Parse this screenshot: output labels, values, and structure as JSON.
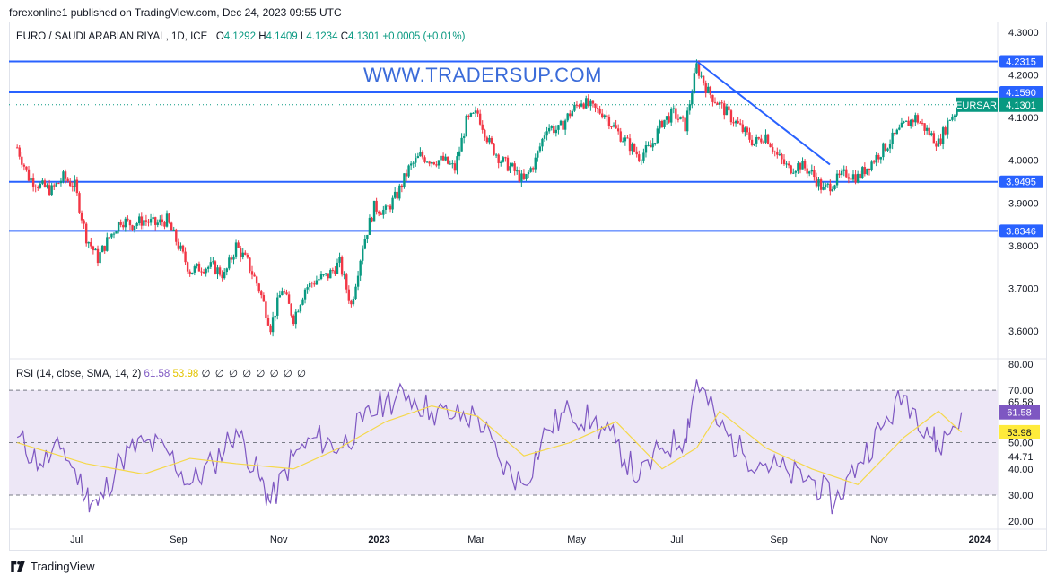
{
  "header": {
    "publisher_line": "forexonline1 published on TradingView.com, Dec 24, 2023 09:55 UTC"
  },
  "watermark": "WWW.TRADERSUP.COM",
  "legend": {
    "symbol": "EURO / SAUDI ARABIAN RIYAL, 1D, ICE",
    "o_label": "O",
    "o": "4.1292",
    "h_label": "H",
    "h": "4.1409",
    "l_label": "L",
    "l": "4.1234",
    "c_label": "C",
    "c": "4.1301",
    "change": "+0.0005 (+0.01%)"
  },
  "rsi_legend": {
    "label": "RSI (14, close, SMA, 14, 2)",
    "rsi": "61.58",
    "sma": "53.98",
    "empty": "∅ ∅ ∅ ∅ ∅ ∅ ∅ ∅"
  },
  "footer": {
    "brand": "TradingView"
  },
  "colors": {
    "up": "#089981",
    "down": "#f23645",
    "hline": "#2962ff",
    "rsi": "#7e57c2",
    "rsi_ma": "#f5d84a",
    "rsi_band": "#ede7f6"
  },
  "chart_data": [
    {
      "type": "candlestick",
      "symbol": "EURSAR",
      "price_axis_ticks": [
        "4.3000",
        "4.2000",
        "4.1000",
        "4.0000",
        "3.9000",
        "3.8000",
        "3.7000",
        "3.6000"
      ],
      "time_axis_ticks": [
        "Jul",
        "Sep",
        "Nov",
        "2023",
        "Mar",
        "May",
        "Jul",
        "Sep",
        "Nov",
        "2024"
      ],
      "ylim": [
        3.535,
        4.325
      ],
      "horizontal_levels": [
        {
          "label": "4.2315",
          "value": 4.2315
        },
        {
          "label": "4.1590",
          "value": 4.159
        },
        {
          "label": "3.9495",
          "value": 3.9495
        },
        {
          "label": "3.8346",
          "value": 3.8346
        }
      ],
      "current_price": {
        "symbol_tag": "EURSAR",
        "value": "4.1301",
        "numeric": 4.1301
      },
      "trendline": {
        "from": {
          "date": "2023-07-13",
          "price": 4.232
        },
        "to": {
          "date": "2023-10-02",
          "price": 3.99
        }
      },
      "close_series_approx": [
        [
          "2022-05-26",
          4.03
        ],
        [
          "2022-06-02",
          3.96
        ],
        [
          "2022-06-09",
          3.94
        ],
        [
          "2022-06-16",
          3.93
        ],
        [
          "2022-06-23",
          3.96
        ],
        [
          "2022-06-30",
          3.94
        ],
        [
          "2022-07-07",
          3.82
        ],
        [
          "2022-07-14",
          3.77
        ],
        [
          "2022-07-21",
          3.82
        ],
        [
          "2022-07-28",
          3.86
        ],
        [
          "2022-08-04",
          3.85
        ],
        [
          "2022-08-11",
          3.86
        ],
        [
          "2022-08-18",
          3.85
        ],
        [
          "2022-08-25",
          3.86
        ],
        [
          "2022-09-01",
          3.8
        ],
        [
          "2022-09-08",
          3.74
        ],
        [
          "2022-09-15",
          3.75
        ],
        [
          "2022-09-22",
          3.75
        ],
        [
          "2022-09-29",
          3.73
        ],
        [
          "2022-10-06",
          3.8
        ],
        [
          "2022-10-13",
          3.76
        ],
        [
          "2022-10-20",
          3.7
        ],
        [
          "2022-10-27",
          3.61
        ],
        [
          "2022-11-03",
          3.7
        ],
        [
          "2022-11-10",
          3.63
        ],
        [
          "2022-11-17",
          3.7
        ],
        [
          "2022-11-24",
          3.72
        ],
        [
          "2022-12-01",
          3.73
        ],
        [
          "2022-12-08",
          3.76
        ],
        [
          "2022-12-15",
          3.66
        ],
        [
          "2022-12-22",
          3.8
        ],
        [
          "2022-12-29",
          3.89
        ],
        [
          "2023-01-05",
          3.88
        ],
        [
          "2023-01-12",
          3.92
        ],
        [
          "2023-01-19",
          3.98
        ],
        [
          "2023-01-26",
          4.01
        ],
        [
          "2023-02-02",
          4.0
        ],
        [
          "2023-02-09",
          4.0
        ],
        [
          "2023-02-16",
          3.98
        ],
        [
          "2023-02-23",
          4.09
        ],
        [
          "2023-03-02",
          4.11
        ],
        [
          "2023-03-09",
          4.04
        ],
        [
          "2023-03-16",
          4.0
        ],
        [
          "2023-03-23",
          3.98
        ],
        [
          "2023-03-30",
          3.95
        ],
        [
          "2023-04-06",
          4.0
        ],
        [
          "2023-04-13",
          4.08
        ],
        [
          "2023-04-20",
          4.07
        ],
        [
          "2023-04-27",
          4.11
        ],
        [
          "2023-05-04",
          4.14
        ],
        [
          "2023-05-11",
          4.12
        ],
        [
          "2023-05-18",
          4.11
        ],
        [
          "2023-05-25",
          4.07
        ],
        [
          "2023-06-01",
          4.04
        ],
        [
          "2023-06-08",
          4.01
        ],
        [
          "2023-06-15",
          4.03
        ],
        [
          "2023-06-22",
          4.09
        ],
        [
          "2023-06-29",
          4.11
        ],
        [
          "2023-07-06",
          4.08
        ],
        [
          "2023-07-13",
          4.22
        ],
        [
          "2023-07-20",
          4.16
        ],
        [
          "2023-07-27",
          4.13
        ],
        [
          "2023-08-03",
          4.1
        ],
        [
          "2023-08-10",
          4.07
        ],
        [
          "2023-08-17",
          4.04
        ],
        [
          "2023-08-24",
          4.06
        ],
        [
          "2023-08-31",
          4.01
        ],
        [
          "2023-09-07",
          3.98
        ],
        [
          "2023-09-14",
          3.99
        ],
        [
          "2023-09-21",
          3.97
        ],
        [
          "2023-09-28",
          3.93
        ],
        [
          "2023-10-05",
          3.95
        ],
        [
          "2023-10-12",
          3.97
        ],
        [
          "2023-10-19",
          3.96
        ],
        [
          "2023-10-26",
          3.99
        ],
        [
          "2023-11-02",
          4.02
        ],
        [
          "2023-11-09",
          4.05
        ],
        [
          "2023-11-16",
          4.08
        ],
        [
          "2023-11-23",
          4.1
        ],
        [
          "2023-11-30",
          4.07
        ],
        [
          "2023-12-07",
          4.04
        ],
        [
          "2023-12-14",
          4.1
        ],
        [
          "2023-12-21",
          4.13
        ]
      ]
    },
    {
      "type": "line",
      "name": "RSI (14, close, SMA, 14, 2)",
      "rsi_axis_ticks": [
        "80.00",
        "70.00",
        "65.58",
        "50.00",
        "44.71",
        "40.00",
        "30.00",
        "20.00"
      ],
      "ylim": [
        17,
        82
      ],
      "bands": {
        "upper": 70,
        "middle": 50,
        "lower": 30
      },
      "last_rsi": "61.58",
      "last_sma": "53.98",
      "rsi_series_approx": [
        [
          "2022-05-26",
          52
        ],
        [
          "2022-06-09",
          42
        ],
        [
          "2022-06-23",
          48
        ],
        [
          "2022-07-07",
          30
        ],
        [
          "2022-07-14",
          26
        ],
        [
          "2022-07-28",
          44
        ],
        [
          "2022-08-11",
          50
        ],
        [
          "2022-08-25",
          47
        ],
        [
          "2022-09-08",
          34
        ],
        [
          "2022-09-22",
          42
        ],
        [
          "2022-10-06",
          55
        ],
        [
          "2022-10-20",
          37
        ],
        [
          "2022-10-27",
          27
        ],
        [
          "2022-11-10",
          45
        ],
        [
          "2022-11-24",
          52
        ],
        [
          "2022-12-08",
          48
        ],
        [
          "2022-12-22",
          58
        ],
        [
          "2023-01-05",
          66
        ],
        [
          "2023-01-19",
          68
        ],
        [
          "2023-02-02",
          62
        ],
        [
          "2023-02-16",
          60
        ],
        [
          "2023-03-02",
          60
        ],
        [
          "2023-03-16",
          42
        ],
        [
          "2023-03-30",
          34
        ],
        [
          "2023-04-13",
          55
        ],
        [
          "2023-04-27",
          62
        ],
        [
          "2023-05-11",
          58
        ],
        [
          "2023-05-25",
          50
        ],
        [
          "2023-06-08",
          36
        ],
        [
          "2023-06-22",
          48
        ],
        [
          "2023-07-06",
          52
        ],
        [
          "2023-07-13",
          74
        ],
        [
          "2023-07-27",
          56
        ],
        [
          "2023-08-10",
          46
        ],
        [
          "2023-08-24",
          42
        ],
        [
          "2023-09-07",
          38
        ],
        [
          "2023-09-21",
          36
        ],
        [
          "2023-10-05",
          27
        ],
        [
          "2023-10-19",
          42
        ],
        [
          "2023-11-02",
          55
        ],
        [
          "2023-11-16",
          68
        ],
        [
          "2023-11-30",
          56
        ],
        [
          "2023-12-07",
          48
        ],
        [
          "2023-12-21",
          61.58
        ]
      ],
      "sma_series_approx": [
        [
          "2022-05-26",
          50
        ],
        [
          "2022-07-07",
          42
        ],
        [
          "2022-08-11",
          38
        ],
        [
          "2022-09-08",
          44
        ],
        [
          "2022-10-06",
          42
        ],
        [
          "2022-11-10",
          40
        ],
        [
          "2022-12-08",
          48
        ],
        [
          "2023-01-05",
          58
        ],
        [
          "2023-02-02",
          64
        ],
        [
          "2023-03-02",
          60
        ],
        [
          "2023-03-30",
          45
        ],
        [
          "2023-04-27",
          50
        ],
        [
          "2023-05-25",
          58
        ],
        [
          "2023-06-22",
          40
        ],
        [
          "2023-07-13",
          48
        ],
        [
          "2023-07-27",
          62
        ],
        [
          "2023-08-24",
          48
        ],
        [
          "2023-09-21",
          40
        ],
        [
          "2023-10-19",
          34
        ],
        [
          "2023-11-16",
          52
        ],
        [
          "2023-12-07",
          62
        ],
        [
          "2023-12-21",
          53.98
        ]
      ]
    }
  ]
}
